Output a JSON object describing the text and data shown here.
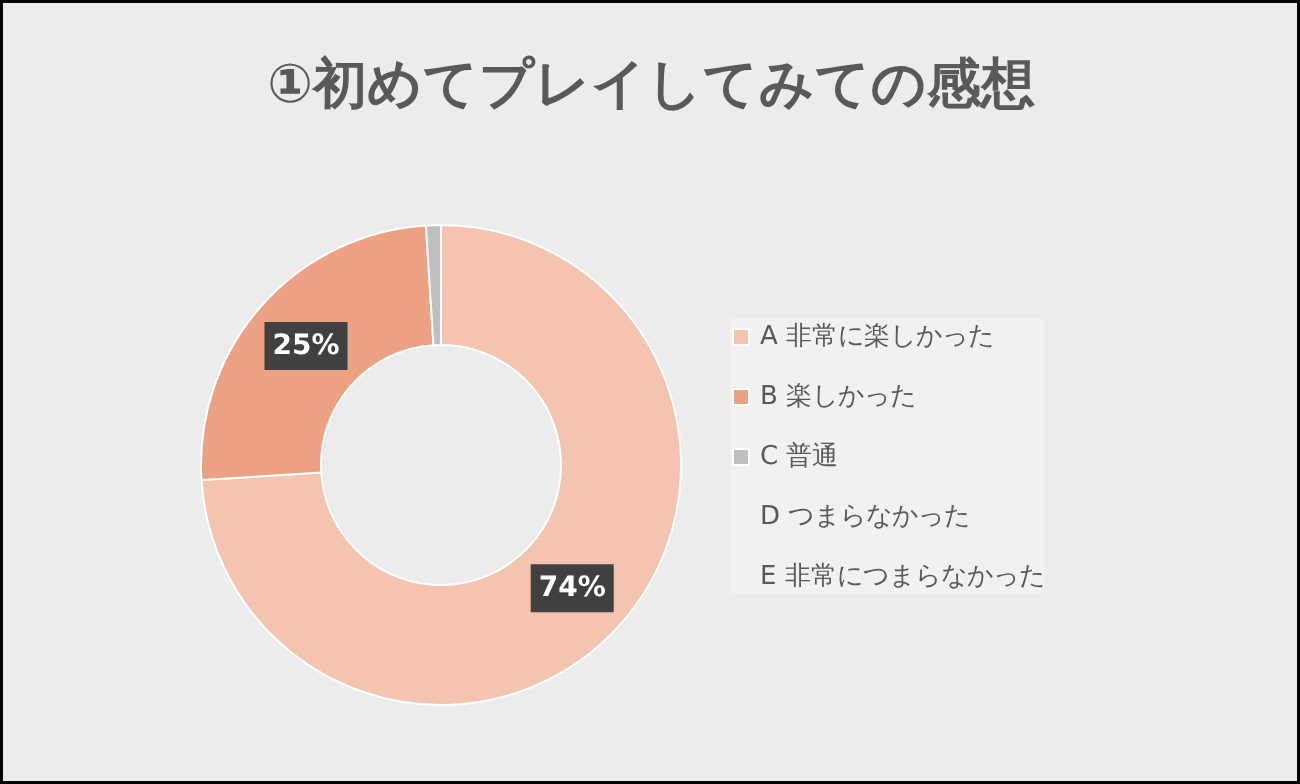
{
  "chart_data": {
    "type": "donut",
    "title": "①初めてプレイしてみての感想",
    "categories": [
      "A 非常に楽しかった",
      "B 楽しかった",
      "C 普通",
      "D つまらなかった",
      "E 非常につまらなかった"
    ],
    "values": [
      74,
      25,
      1,
      0,
      0
    ],
    "colors": [
      "#f4c4b0",
      "#eda183",
      "#bfbfbf",
      "#bfbfbf",
      "#bfbfbf"
    ],
    "value_labels": [
      "74%",
      "25%",
      null,
      null,
      null
    ],
    "legend": "right"
  }
}
